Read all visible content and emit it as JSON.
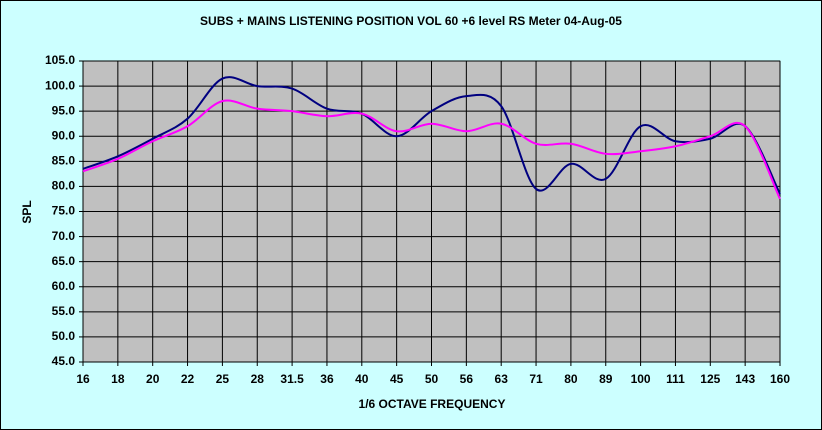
{
  "chart_data": {
    "type": "line",
    "title": "SUBS + MAINS LISTENING POSITION VOL 60 +6 level RS Meter 04-Aug-05",
    "x_label": "1/6 OCTAVE FREQUENCY",
    "y_label": "SPL",
    "categories": [
      "16",
      "18",
      "20",
      "22",
      "25",
      "28",
      "31.5",
      "36",
      "40",
      "45",
      "50",
      "56",
      "63",
      "71",
      "80",
      "89",
      "100",
      "111",
      "125",
      "143",
      "160"
    ],
    "series": [
      {
        "color": "#000080",
        "values": [
          83.5,
          86,
          89.5,
          93.5,
          101.5,
          100,
          99.5,
          95.5,
          94.5,
          90,
          95,
          98,
          96,
          79.5,
          84.5,
          81.5,
          92,
          89,
          89.5,
          92,
          78.5
        ]
      },
      {
        "color": "#ff00ff",
        "values": [
          83,
          85.5,
          89,
          92,
          97,
          95.5,
          95,
          94,
          94.5,
          91,
          92.5,
          91,
          92.5,
          88.5,
          88.5,
          86.5,
          87,
          88,
          90,
          92,
          77.5
        ]
      }
    ],
    "ylim": [
      45,
      105
    ],
    "yticks": [
      {
        "value": 45,
        "label": "45.0"
      },
      {
        "value": 50,
        "label": "50.0"
      },
      {
        "value": 55,
        "label": "55.0"
      },
      {
        "value": 60,
        "label": "60.0"
      },
      {
        "value": 65,
        "label": "65.0"
      },
      {
        "value": 70,
        "label": "70.0"
      },
      {
        "value": 75,
        "label": "75.0"
      },
      {
        "value": 80,
        "label": "80.0"
      },
      {
        "value": 85,
        "label": "85.0"
      },
      {
        "value": 90,
        "label": "90.0"
      },
      {
        "value": 95,
        "label": "95.0"
      },
      {
        "value": 100,
        "label": "100.0"
      },
      {
        "value": 105,
        "label": "105.0"
      }
    ],
    "grid": true,
    "smooth": true
  }
}
